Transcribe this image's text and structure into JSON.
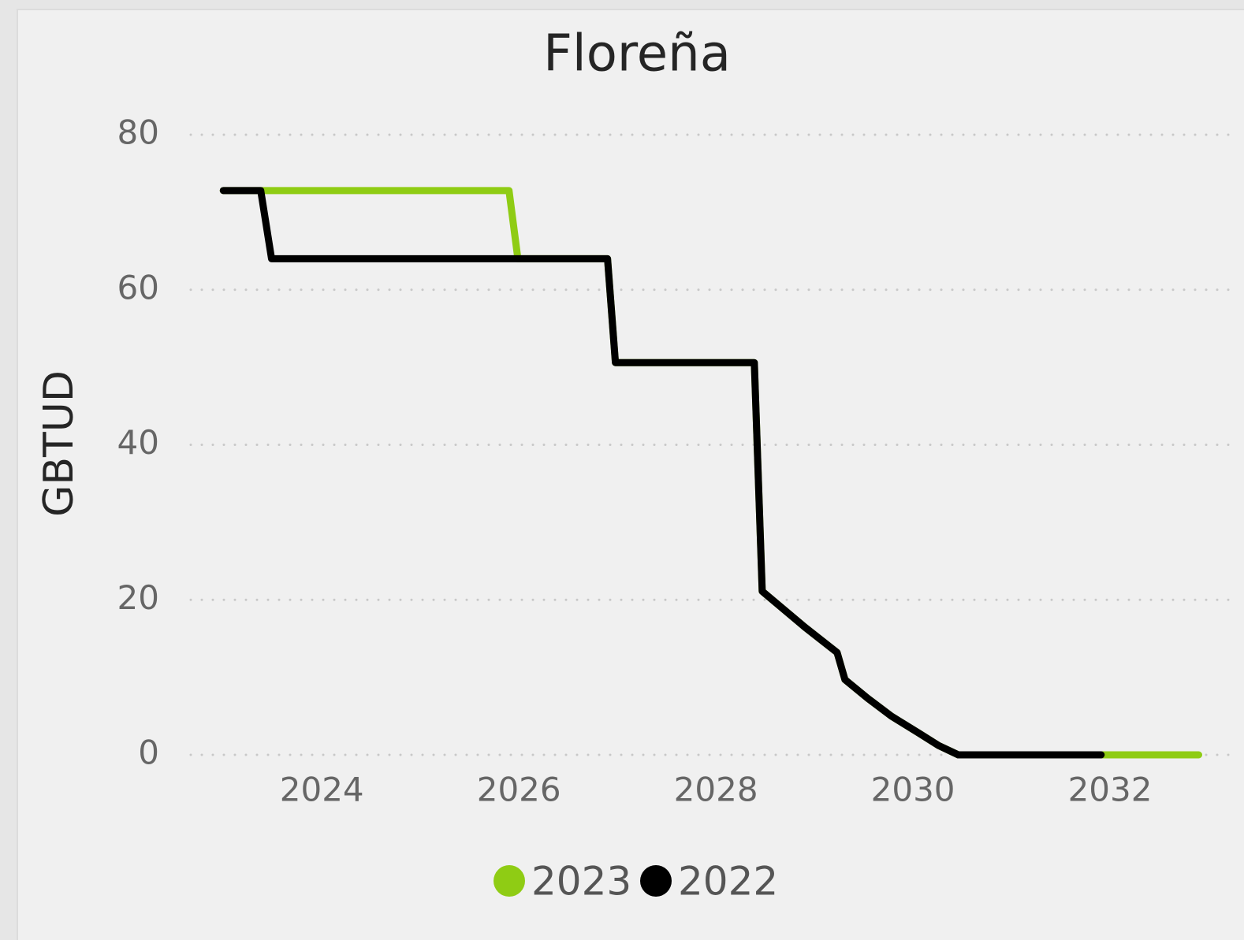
{
  "chart_data": {
    "type": "line",
    "title": "Floreña",
    "y_label": "GBTUD",
    "x": [
      2023.0,
      2023.38,
      2023.49,
      2025.9,
      2025.99,
      2026.9,
      2026.98,
      2028.39,
      2028.47,
      2028.9,
      2029.23,
      2029.31,
      2029.54,
      2029.78,
      2030.06,
      2030.26,
      2030.46,
      2031.91,
      2032.9
    ],
    "series": [
      {
        "name": "2023",
        "color": "#8fcc14",
        "values": [
          72.8,
          72.8,
          72.8,
          72.8,
          64,
          64,
          50.6,
          50.6,
          21.1,
          16.5,
          13.2,
          9.7,
          7.3,
          5,
          2.8,
          1.2,
          0,
          0,
          0
        ]
      },
      {
        "name": "2022",
        "color": "#000000",
        "values": [
          72.8,
          72.8,
          64,
          64,
          64,
          64,
          50.6,
          50.6,
          21.1,
          16.5,
          13.2,
          9.7,
          7.3,
          5,
          2.8,
          1.2,
          0,
          0,
          null
        ]
      }
    ],
    "xlim": [
      2022.67,
      2033.28
    ],
    "xticks": [
      2024,
      2026,
      2028,
      2030,
      2032
    ],
    "ylim": [
      0,
      80
    ],
    "yticks": [
      0,
      20,
      40,
      60,
      80
    ],
    "grid": true,
    "legend": "bottom"
  }
}
